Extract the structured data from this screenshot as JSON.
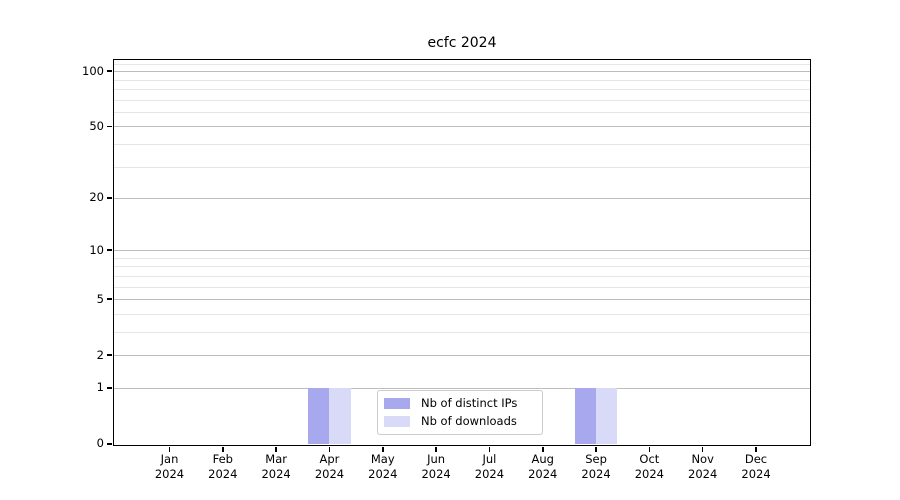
{
  "chart_data": {
    "type": "bar",
    "title": "ecfc 2024",
    "categories": [
      "Jan 2024",
      "Feb 2024",
      "Mar 2024",
      "Apr 2024",
      "May 2024",
      "Jun 2024",
      "Jul 2024",
      "Aug 2024",
      "Sep 2024",
      "Oct 2024",
      "Nov 2024",
      "Dec 2024"
    ],
    "series": [
      {
        "name": "Nb of distinct IPs",
        "color": "#a8a8ee",
        "values": [
          0,
          0,
          0,
          1,
          0,
          0,
          0,
          0,
          1,
          0,
          0,
          0
        ]
      },
      {
        "name": "Nb of downloads",
        "color": "#d9d9f8",
        "values": [
          0,
          0,
          0,
          1,
          0,
          0,
          0,
          0,
          1,
          0,
          0,
          0
        ]
      }
    ],
    "yscale": "log1p",
    "ylim": [
      0,
      115
    ],
    "yticks": [
      0,
      1,
      2,
      5,
      10,
      20,
      50,
      100
    ],
    "minor_gridlines": [
      3,
      4,
      6,
      7,
      8,
      9,
      30,
      40,
      60,
      70,
      80,
      90,
      110
    ],
    "grid": "on",
    "legend_position": "lower center",
    "xlabel": "",
    "ylabel": ""
  },
  "colors": {
    "background": "#ffffff",
    "spine": "#000000",
    "major_grid": "#bdbdbd",
    "minor_grid": "#e6e6e6",
    "legend_border": "#cccccc"
  }
}
